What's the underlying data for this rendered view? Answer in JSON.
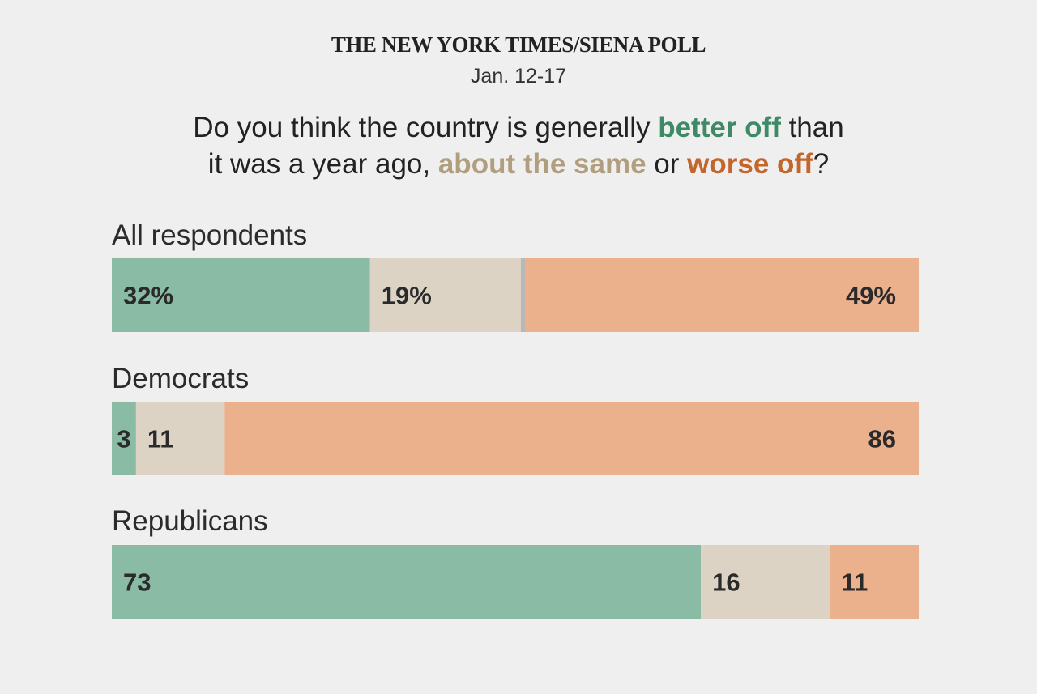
{
  "header": {
    "source": "THE NEW YORK TIMES/SIENA POLL",
    "date": "Jan. 12-17"
  },
  "question": {
    "part1": "Do you think the country is generally ",
    "better": "better off",
    "part2": " than",
    "part3": "it was a year ago, ",
    "same": "about the same",
    "part4": " or ",
    "worse": "worse off",
    "part5": "?"
  },
  "colors": {
    "better": "#89bba5",
    "same": "#dcd3c5",
    "worse": "#ebb08c",
    "better_text": "#3f8a66",
    "same_text": "#b19e7e",
    "worse_text": "#c2662b",
    "separator": "#b7b9b8"
  },
  "chart_data": {
    "type": "bar",
    "orientation": "horizontal",
    "stacked": true,
    "categories": [
      "All respondents",
      "Democrats",
      "Republicans"
    ],
    "series": [
      {
        "name": "better off",
        "values": [
          32,
          3,
          73
        ],
        "labels": [
          "32%",
          "3",
          "73"
        ]
      },
      {
        "name": "about the same",
        "values": [
          19,
          11,
          16
        ],
        "labels": [
          "19%",
          "11",
          "16"
        ]
      },
      {
        "name": "worse off",
        "values": [
          49,
          86,
          11
        ],
        "labels": [
          "49%",
          "86",
          "11"
        ]
      }
    ],
    "xlim": [
      0,
      100
    ],
    "grid": false
  }
}
